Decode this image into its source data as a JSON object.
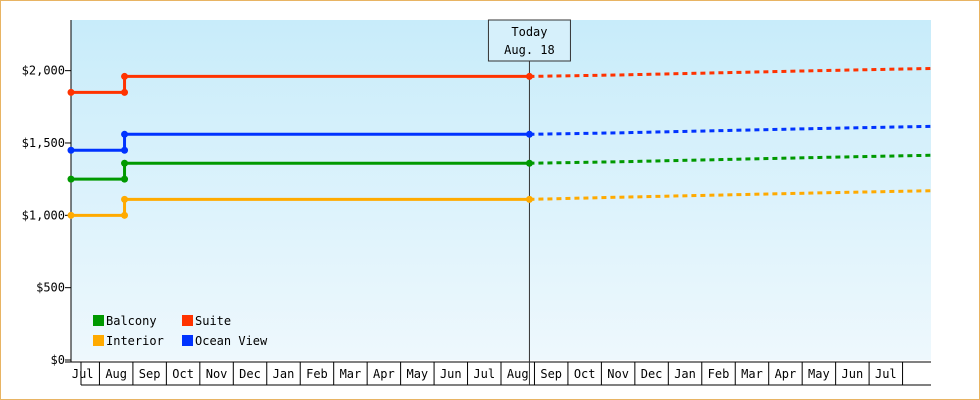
{
  "chart_data": {
    "type": "line",
    "title": "",
    "xlabel": "",
    "ylabel": "",
    "y_ticks": [
      "$0",
      "$500",
      "$1,000",
      "$1,500",
      "$2,000"
    ],
    "ylim": [
      0,
      2350
    ],
    "x_ticks": [
      "Jul",
      "Aug",
      "Sep",
      "Oct",
      "Nov",
      "Dec",
      "Jan",
      "Feb",
      "Mar",
      "Apr",
      "May",
      "Jun",
      "Jul",
      "Aug",
      "Sep",
      "Oct",
      "Nov",
      "Dec",
      "Jan",
      "Feb",
      "Mar",
      "Apr",
      "May",
      "Jun",
      "Jul"
    ],
    "xlim": [
      -0.35,
      25.35
    ],
    "today_marker": {
      "x": 13.35,
      "line1": "Today",
      "line2": "Aug. 18"
    },
    "legend": {
      "placement": "bottom-left",
      "columns": 2
    },
    "series": [
      {
        "name": "Suite",
        "color": "#ff3300",
        "points": [
          [
            -0.35,
            1850
          ],
          [
            1.25,
            1850
          ],
          [
            1.25,
            1960
          ],
          [
            13.35,
            1960
          ]
        ],
        "forecast": [
          [
            13.35,
            1960
          ],
          [
            16.0,
            1970
          ],
          [
            19.0,
            1985
          ],
          [
            22.0,
            2000
          ],
          [
            25.35,
            2015
          ]
        ]
      },
      {
        "name": "Ocean View",
        "color": "#0033ff",
        "points": [
          [
            -0.35,
            1450
          ],
          [
            1.25,
            1450
          ],
          [
            1.25,
            1560
          ],
          [
            13.35,
            1560
          ]
        ],
        "forecast": [
          [
            13.35,
            1560
          ],
          [
            16.0,
            1570
          ],
          [
            19.0,
            1585
          ],
          [
            22.0,
            1600
          ],
          [
            25.35,
            1615
          ]
        ]
      },
      {
        "name": "Balcony",
        "color": "#009900",
        "points": [
          [
            -0.35,
            1250
          ],
          [
            1.25,
            1250
          ],
          [
            1.25,
            1360
          ],
          [
            13.35,
            1360
          ]
        ],
        "forecast": [
          [
            13.35,
            1360
          ],
          [
            16.0,
            1370
          ],
          [
            19.0,
            1385
          ],
          [
            22.0,
            1400
          ],
          [
            25.35,
            1415
          ]
        ]
      },
      {
        "name": "Interior",
        "color": "#ffaa00",
        "points": [
          [
            -0.35,
            1000
          ],
          [
            1.25,
            1000
          ],
          [
            1.25,
            1110
          ],
          [
            13.35,
            1110
          ]
        ],
        "forecast": [
          [
            13.35,
            1110
          ],
          [
            16.0,
            1125
          ],
          [
            19.0,
            1140
          ],
          [
            22.0,
            1155
          ],
          [
            25.35,
            1170
          ]
        ]
      }
    ],
    "legend_order": [
      "Balcony",
      "Suite",
      "Interior",
      "Ocean View"
    ]
  }
}
